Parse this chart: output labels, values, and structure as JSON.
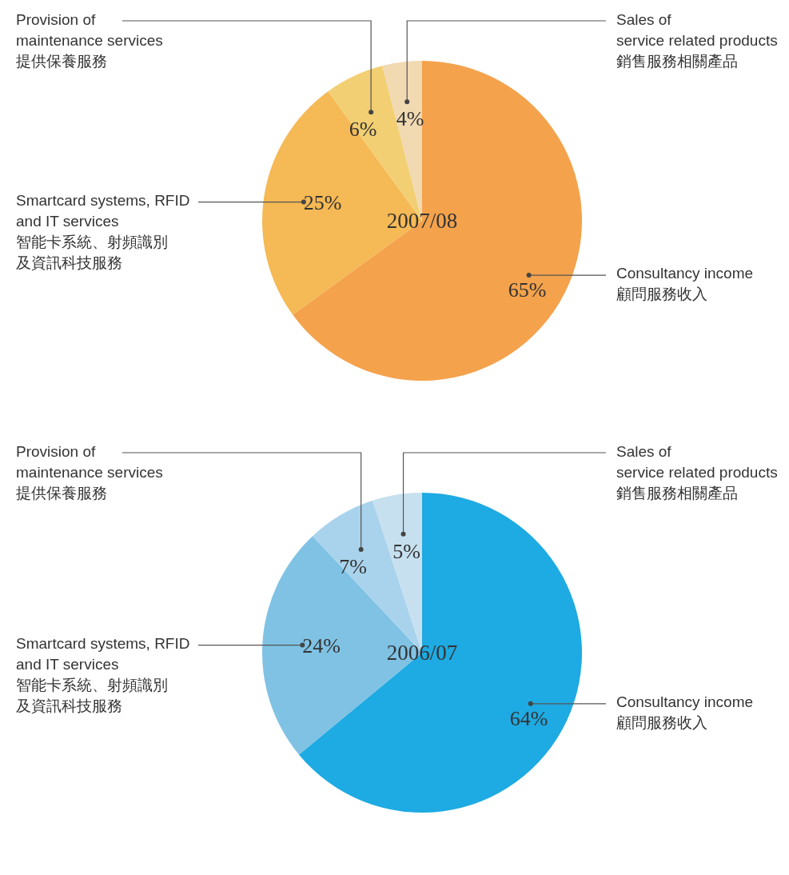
{
  "chart_data": [
    {
      "type": "pie",
      "title": "2007/08",
      "categories": [
        "Consultancy income\n顧問服務收入",
        "Smartcard systems, RFID\nand IT services\n智能卡系統、射頻識別及資訊科技服務",
        "Provision of\nmaintenance services\n提供保養服務",
        "Sales of\nservice related products\n銷售服務相關產品"
      ],
      "values": [
        65,
        25,
        6,
        4
      ],
      "colors": [
        "#f4a24c",
        "#f5b955",
        "#f2cf72",
        "#f1d9b2"
      ],
      "value_labels": [
        "65%",
        "25%",
        "6%",
        "4%"
      ]
    },
    {
      "type": "pie",
      "title": "2006/07",
      "categories": [
        "Consultancy income\n顧問服務收入",
        "Smartcard systems, RFID\nand IT services\n智能卡系統、射頻識別及資訊科技服務",
        "Provision of\nmaintenance services\n提供保養服務",
        "Sales of\nservice related products\n銷售服務相關產品"
      ],
      "values": [
        64,
        24,
        7,
        5
      ],
      "colors": [
        "#1eaae2",
        "#7fc2e4",
        "#a9d3ec",
        "#c6e0ef"
      ],
      "value_labels": [
        "64%",
        "24%",
        "7%",
        "5%"
      ]
    }
  ]
}
